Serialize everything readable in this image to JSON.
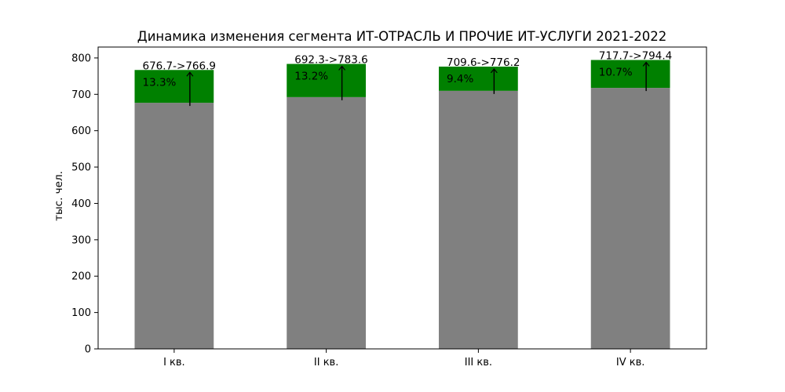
{
  "chart_data": {
    "type": "bar",
    "stacked": true,
    "title": "Динамика изменения сегмента ИТ-ОТРАСЛЬ И ПРОЧИЕ ИТ-УСЛУГИ 2021-2022",
    "xlabel": "",
    "ylabel": "тыс. чел.",
    "ylim": [
      0,
      830
    ],
    "yticks": [
      0,
      100,
      200,
      300,
      400,
      500,
      600,
      700,
      800
    ],
    "categories": [
      "I кв.",
      "II кв.",
      "III кв.",
      "IV кв."
    ],
    "series": [
      {
        "role": "base",
        "color": "#808080",
        "values": [
          676.7,
          692.3,
          709.6,
          717.7
        ]
      },
      {
        "role": "increase",
        "color": "#008000",
        "values": [
          90.2,
          91.3,
          66.6,
          76.7
        ]
      }
    ],
    "totals": [
      766.9,
      783.6,
      776.2,
      794.4
    ],
    "annotations": [
      {
        "text": "676.7->766.9",
        "pct": "13.3%"
      },
      {
        "text": "692.3->783.6",
        "pct": "13.2%"
      },
      {
        "text": "709.6->776.2",
        "pct": "9.4%"
      },
      {
        "text": "717.7->794.4",
        "pct": "10.7%"
      }
    ],
    "grid": false,
    "legend": "none"
  }
}
